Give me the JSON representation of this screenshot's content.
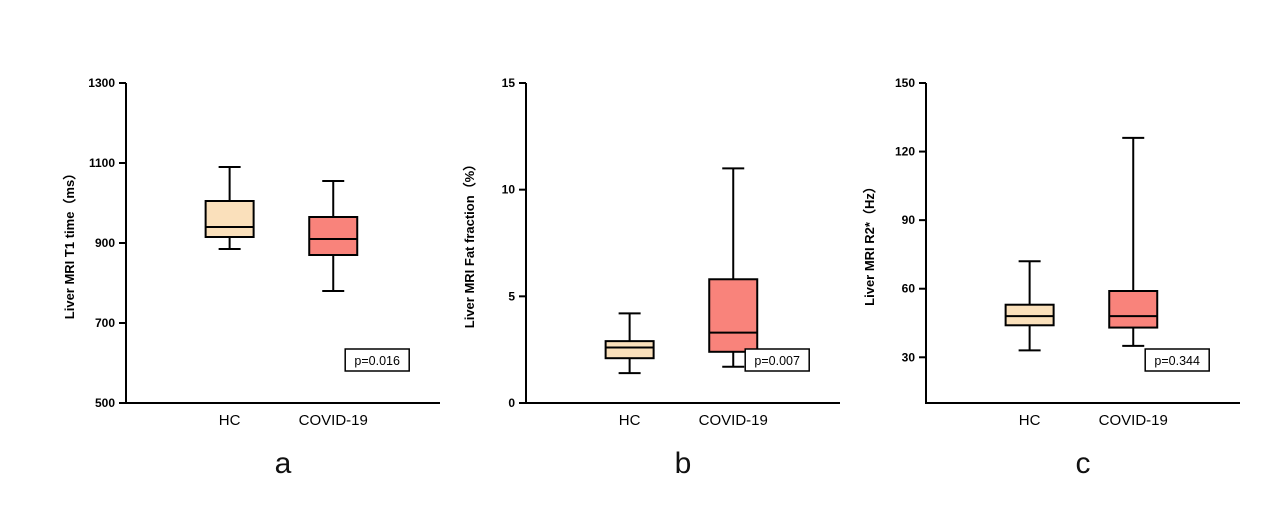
{
  "page": {
    "background": "#ffffff",
    "axis_color": "#000000"
  },
  "panels": [
    {
      "letter": "a"
    },
    {
      "letter": "b"
    },
    {
      "letter": "c"
    }
  ],
  "chart_data": [
    {
      "type": "box",
      "title": "",
      "ylabel": "Liver MRI T1 time（ms）",
      "xlabel": "",
      "categories": [
        "HC",
        "COVID-19"
      ],
      "ylim": [
        500,
        1300
      ],
      "yticks": [
        500,
        700,
        900,
        1100,
        1300
      ],
      "grid": false,
      "legend": "none",
      "p_label": "p=0.016",
      "series": [
        {
          "name": "HC",
          "color": "#FAE0BB",
          "min": 885,
          "q1": 915,
          "median": 940,
          "q3": 1005,
          "max": 1090
        },
        {
          "name": "COVID-19",
          "color": "#F9837B",
          "min": 780,
          "q1": 870,
          "median": 910,
          "q3": 965,
          "max": 1055
        }
      ]
    },
    {
      "type": "box",
      "title": "",
      "ylabel": "Liver MRI Fat fraction（%）",
      "xlabel": "",
      "categories": [
        "HC",
        "COVID-19"
      ],
      "ylim": [
        0,
        15
      ],
      "yticks": [
        0,
        5,
        10,
        15
      ],
      "grid": false,
      "legend": "none",
      "p_label": "p=0.007",
      "series": [
        {
          "name": "HC",
          "color": "#FAE0BB",
          "min": 1.4,
          "q1": 2.1,
          "median": 2.6,
          "q3": 2.9,
          "max": 4.2
        },
        {
          "name": "COVID-19",
          "color": "#F9837B",
          "min": 1.7,
          "q1": 2.4,
          "median": 3.3,
          "q3": 5.8,
          "max": 11.0
        }
      ]
    },
    {
      "type": "box",
      "title": "",
      "ylabel": "Liver MRI R2*（Hz）",
      "xlabel": "",
      "categories": [
        "HC",
        "COVID-19"
      ],
      "ylim": [
        10,
        150
      ],
      "yticks": [
        30,
        60,
        90,
        120,
        150
      ],
      "grid": false,
      "legend": "none",
      "p_label": "p=0.344",
      "series": [
        {
          "name": "HC",
          "color": "#FAE0BB",
          "min": 33,
          "q1": 44,
          "median": 48,
          "q3": 53,
          "max": 72
        },
        {
          "name": "COVID-19",
          "color": "#F9837B",
          "min": 35,
          "q1": 43,
          "median": 48,
          "q3": 59,
          "max": 126
        }
      ]
    }
  ]
}
